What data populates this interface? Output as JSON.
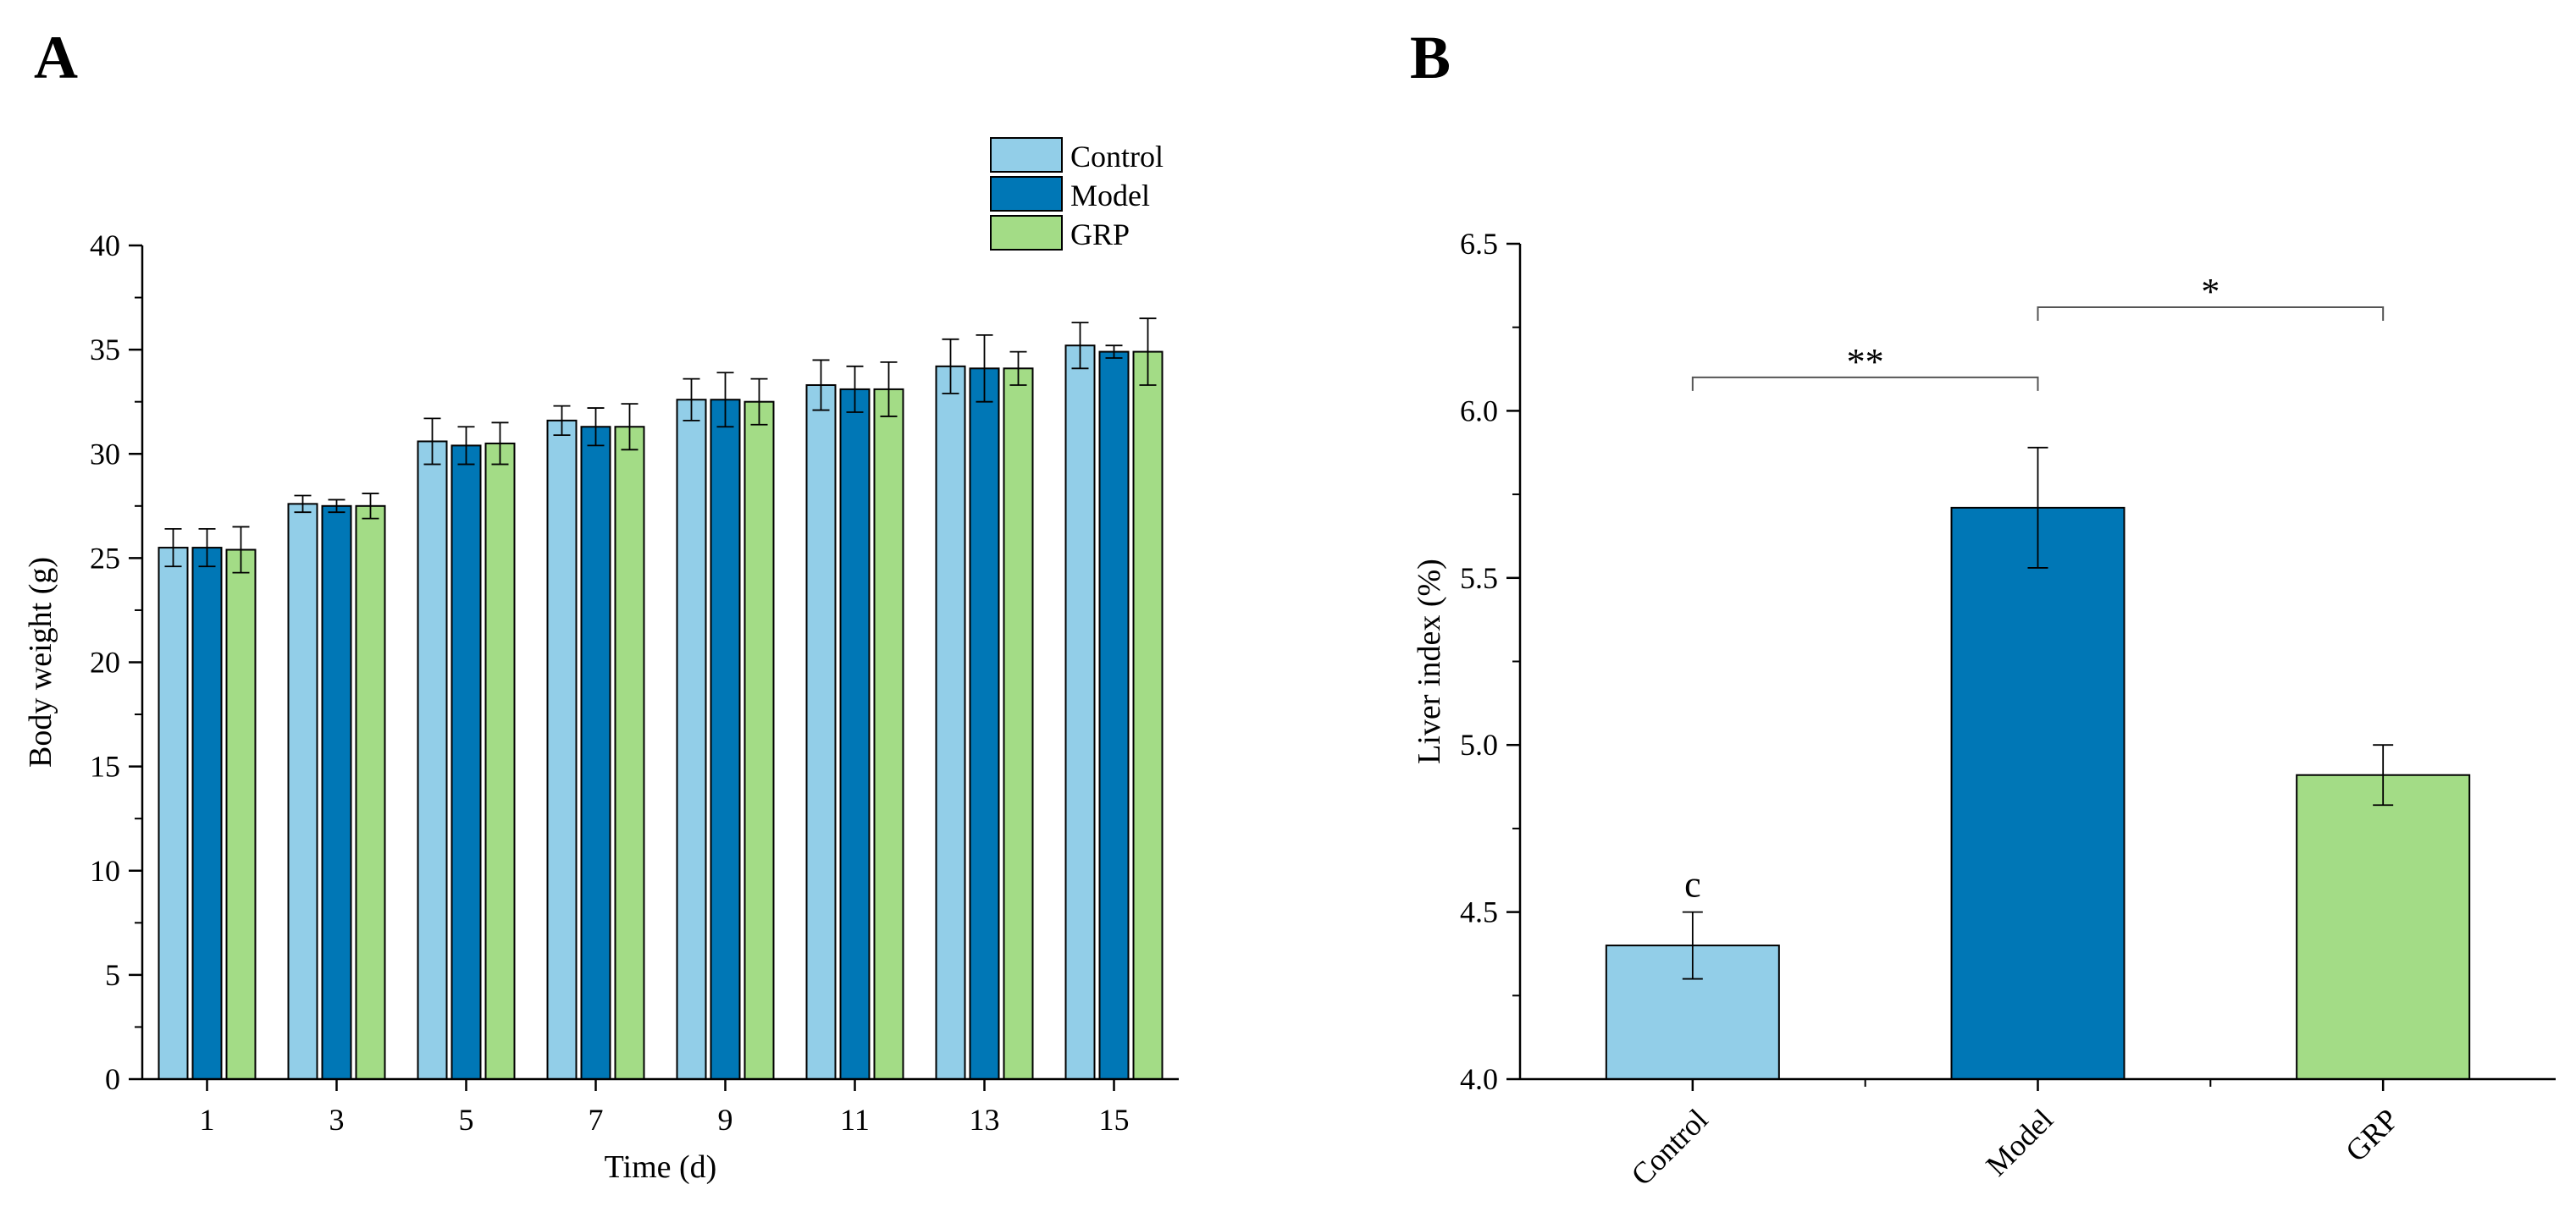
{
  "figure": {
    "panel_a_label": "A",
    "panel_b_label": "B"
  },
  "chart_data": [
    {
      "type": "bar",
      "panel": "A",
      "title": "",
      "xlabel": "Time (d)",
      "ylabel": "Body weight (g)",
      "ylim": [
        0,
        40
      ],
      "yticks": [
        0,
        5,
        10,
        15,
        20,
        25,
        30,
        35,
        40
      ],
      "categories": [
        "1",
        "3",
        "5",
        "7",
        "9",
        "11",
        "13",
        "15"
      ],
      "legend_position": "top-right",
      "series": [
        {
          "name": "Control",
          "color": "#92CEE8",
          "values": [
            25.5,
            27.6,
            30.6,
            31.6,
            32.6,
            33.3,
            34.2,
            35.2
          ],
          "errors": [
            0.9,
            0.4,
            1.1,
            0.7,
            1.0,
            1.2,
            1.3,
            1.1
          ]
        },
        {
          "name": "Model",
          "color": "#0077B6",
          "values": [
            25.5,
            27.5,
            30.4,
            31.3,
            32.6,
            33.1,
            34.1,
            34.9
          ],
          "errors": [
            0.9,
            0.3,
            0.9,
            0.9,
            1.3,
            1.1,
            1.6,
            0.3
          ]
        },
        {
          "name": "GRP",
          "color": "#A3DC86",
          "values": [
            25.4,
            27.5,
            30.5,
            31.3,
            32.5,
            33.1,
            34.1,
            34.9
          ],
          "errors": [
            1.1,
            0.6,
            1.0,
            1.1,
            1.1,
            1.3,
            0.8,
            1.6
          ]
        }
      ]
    },
    {
      "type": "bar",
      "panel": "B",
      "title": "",
      "xlabel": "",
      "ylabel": "Liver index (%)",
      "ylim": [
        4.0,
        6.5
      ],
      "yticks": [
        4.0,
        4.5,
        5.0,
        5.5,
        6.0,
        6.5
      ],
      "ytick_labels": [
        "4.0",
        "4.5",
        "5.0",
        "5.5",
        "6.0",
        "6.5"
      ],
      "categories": [
        "Control",
        "Model",
        "GRP"
      ],
      "colors": [
        "#92CEE8",
        "#0077B6",
        "#A3DC86"
      ],
      "values": [
        4.4,
        5.71,
        4.91
      ],
      "errors": [
        0.1,
        0.18,
        0.09
      ],
      "bar_labels": [
        "c",
        "",
        ""
      ],
      "significance": [
        {
          "from": "Control",
          "to": "Model",
          "label": "**",
          "y": 6.1
        },
        {
          "from": "Model",
          "to": "GRP",
          "label": "*",
          "y": 6.31
        }
      ]
    }
  ]
}
